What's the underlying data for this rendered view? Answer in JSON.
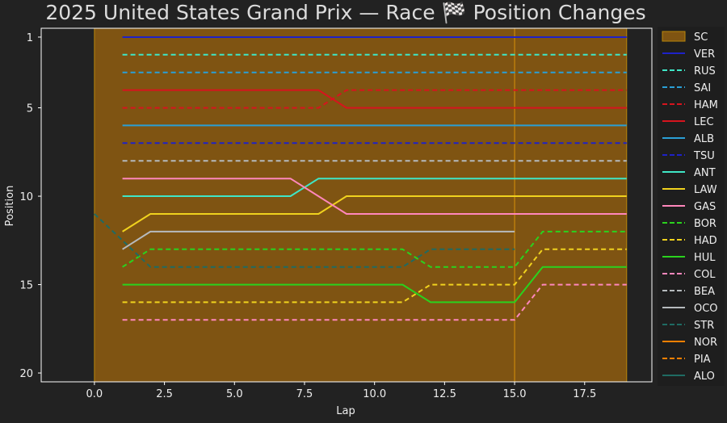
{
  "chart_data": {
    "type": "line",
    "title": "2025 United States Grand Prix — Race 🏁 Position Changes",
    "xlabel": "Lap",
    "ylabel": "Position",
    "xlim": [
      -1.9,
      19.9
    ],
    "ylim": [
      20.5,
      0.5
    ],
    "y_inverted": true,
    "xticks": [
      0.0,
      2.5,
      5.0,
      7.5,
      10.0,
      12.5,
      15.0,
      17.5
    ],
    "xtick_labels": [
      "0.0",
      "2.5",
      "5.0",
      "7.5",
      "10.0",
      "12.5",
      "15.0",
      "17.5"
    ],
    "yticks": [
      1,
      5,
      10,
      15,
      20
    ],
    "ytick_labels": [
      "1",
      "5",
      "10",
      "15",
      "20"
    ],
    "grid": false,
    "legend_position": "right",
    "background": "#222222",
    "axes_color": "#ffffff",
    "sc_band": {
      "label": "SC",
      "x_start": 0,
      "x_end": 19,
      "fill": "#7f5412",
      "edge": "#b8860b",
      "marker_line_x": 15
    },
    "series": [
      {
        "name": "VER",
        "color": "#1e22c8",
        "dash": false,
        "x": [
          1,
          19
        ],
        "y": [
          1,
          1
        ]
      },
      {
        "name": "RUS",
        "color": "#3fe6c6",
        "dash": true,
        "x": [
          1,
          19
        ],
        "y": [
          2,
          2
        ]
      },
      {
        "name": "SAI",
        "color": "#2a9fd6",
        "dash": true,
        "x": [
          1,
          19
        ],
        "y": [
          3,
          3
        ]
      },
      {
        "name": "HAM",
        "color": "#d7141e",
        "dash": true,
        "x": [
          1,
          8,
          9,
          19
        ],
        "y": [
          5,
          5,
          4,
          4
        ]
      },
      {
        "name": "LEC",
        "color": "#d7141e",
        "dash": false,
        "x": [
          1,
          8,
          9,
          19
        ],
        "y": [
          4,
          4,
          5,
          5
        ]
      },
      {
        "name": "ALB",
        "color": "#2a9fd6",
        "dash": false,
        "x": [
          1,
          19
        ],
        "y": [
          6,
          6
        ]
      },
      {
        "name": "TSU",
        "color": "#1e22c8",
        "dash": true,
        "x": [
          1,
          19
        ],
        "y": [
          7,
          7
        ]
      },
      {
        "name": "ANT",
        "color": "#3fe6c6",
        "dash": false,
        "x": [
          1,
          7,
          8,
          19
        ],
        "y": [
          10,
          10,
          9,
          9
        ]
      },
      {
        "name": "LAW",
        "color": "#f0d21e",
        "dash": false,
        "x": [
          1,
          2,
          8,
          9,
          19
        ],
        "y": [
          12,
          11,
          11,
          10,
          10
        ]
      },
      {
        "name": "GAS",
        "color": "#ff87bc",
        "dash": false,
        "x": [
          1,
          7,
          9,
          19
        ],
        "y": [
          9,
          9,
          11,
          11
        ]
      },
      {
        "name": "BOR",
        "color": "#2ad21e",
        "dash": true,
        "x": [
          1,
          2,
          11,
          12,
          15,
          16,
          19
        ],
        "y": [
          14,
          13,
          13,
          14,
          14,
          12,
          12
        ]
      },
      {
        "name": "HAD",
        "color": "#f0d21e",
        "dash": true,
        "x": [
          1,
          11,
          12,
          15,
          16,
          19
        ],
        "y": [
          16,
          16,
          15,
          15,
          13,
          13
        ]
      },
      {
        "name": "HUL",
        "color": "#2ad21e",
        "dash": false,
        "x": [
          1,
          11,
          12,
          15,
          16,
          19
        ],
        "y": [
          15,
          15,
          16,
          16,
          14,
          14
        ]
      },
      {
        "name": "COL",
        "color": "#ff87bc",
        "dash": true,
        "x": [
          1,
          15,
          16,
          19
        ],
        "y": [
          17,
          17,
          15,
          15
        ]
      },
      {
        "name": "BEA",
        "color": "#b6babd",
        "dash": true,
        "x": [
          1,
          19
        ],
        "y": [
          8,
          8
        ]
      },
      {
        "name": "OCO",
        "color": "#b6babd",
        "dash": false,
        "x": [
          1,
          2,
          15
        ],
        "y": [
          13,
          12,
          12
        ]
      },
      {
        "name": "STR",
        "color": "#1f6b63",
        "dash": true,
        "x": [
          0,
          2,
          11,
          12,
          15
        ],
        "y": [
          11,
          14,
          14,
          13,
          13
        ]
      },
      {
        "name": "NOR",
        "color": "#ff8000",
        "dash": false,
        "x": [],
        "y": []
      },
      {
        "name": "PIA",
        "color": "#ff8000",
        "dash": true,
        "x": [],
        "y": []
      },
      {
        "name": "ALO",
        "color": "#1f6b63",
        "dash": false,
        "x": [],
        "y": []
      }
    ]
  }
}
